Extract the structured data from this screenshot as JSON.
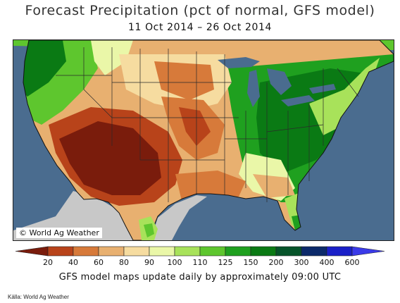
{
  "map": {
    "title": "Forecast Precipitation (pct of normal, GFS model)",
    "date_range": "11 Oct 2014 – 26 Oct 2014",
    "copyright": "© World Ag Weather",
    "footnote": "GFS model maps update daily by approximately 09:00 UTC",
    "source": "Källa: World Ag Weather"
  },
  "legend": {
    "ticks": [
      "20",
      "40",
      "60",
      "80",
      "90",
      "100",
      "110",
      "125",
      "150",
      "200",
      "300",
      "400",
      "600"
    ],
    "colors": [
      "#7a1c0c",
      "#b8431a",
      "#d77a3a",
      "#e8b070",
      "#f6dca0",
      "#eaf7a8",
      "#a8e25a",
      "#5ec62e",
      "#1fa01f",
      "#0a7a14",
      "#06542a",
      "#0c2a6a",
      "#1a20c8",
      "#3a3ae8"
    ],
    "ocean_color": "#4a6c8f",
    "neighbor_land_color": "#c8c8c8"
  }
}
